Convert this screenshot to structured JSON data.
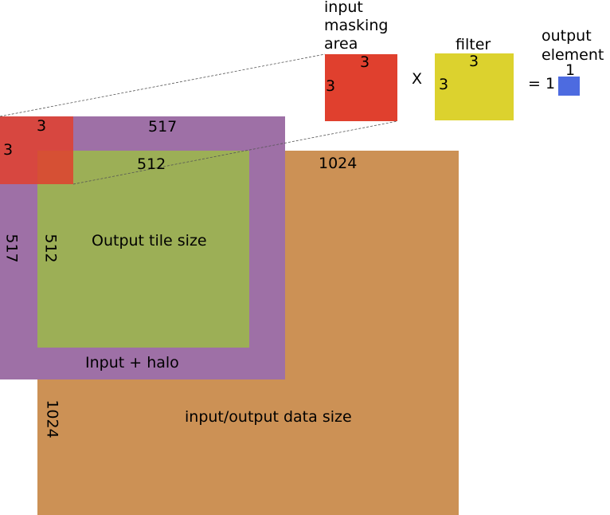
{
  "colors": {
    "data_region": "#cc9155",
    "halo_region": "#9e70a6",
    "tile_region": "#9caf56",
    "mask_red": "#e0402e",
    "filter_yellow": "#dcd22e",
    "output_blue": "#4d6be0"
  },
  "data_region": {
    "label": "input/output data size",
    "width_label": "1024",
    "height_label": "1024"
  },
  "halo_region": {
    "label": "Input + halo",
    "width_label": "517",
    "height_label": "517"
  },
  "tile_region": {
    "label": "Output tile size",
    "width_label": "512",
    "height_label": "512"
  },
  "mask_small": {
    "width_label": "3",
    "height_label": "3"
  },
  "mask_big": {
    "title_line1": "input",
    "title_line2": "masking",
    "title_line3": "area",
    "width_label": "3",
    "height_label": "3"
  },
  "operator_multiply": "X",
  "filter": {
    "title": "filter",
    "width_label": "3",
    "height_label": "3"
  },
  "equals_text": "= 1",
  "output_element": {
    "title_line1": "output",
    "title_line2": "element",
    "size_label": "1"
  }
}
